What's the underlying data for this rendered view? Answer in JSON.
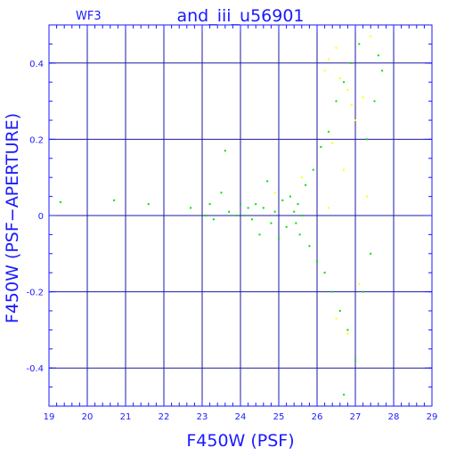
{
  "chart_data": {
    "type": "scatter",
    "corner_label": "WF3",
    "title": "and_iii_u56901",
    "xlabel": "F450W (PSF)",
    "ylabel": "F450W (PSF−APERTURE)",
    "xlim": [
      19,
      29
    ],
    "ylim": [
      -0.5,
      0.5
    ],
    "x_ticks": [
      "19",
      "20",
      "21",
      "22",
      "23",
      "24",
      "25",
      "26",
      "27",
      "28",
      "29"
    ],
    "y_ticks": [
      "-0.4",
      "-0.2",
      "0",
      "0.2",
      "0.4"
    ],
    "y_tick_values": [
      -0.4,
      -0.2,
      0,
      0.2,
      0.4
    ],
    "grid": true,
    "colors": {
      "axis": "#1a1aff",
      "grid": "#1a1aa0",
      "main_points": "#00e000",
      "secondary_points": "#ffff00"
    },
    "series": [
      {
        "color": "#00e000",
        "points": [
          [
            19.3,
            0.035
          ],
          [
            20.7,
            0.04
          ],
          [
            21.6,
            0.03
          ],
          [
            22.7,
            0.02
          ],
          [
            23.1,
            0.0
          ],
          [
            23.2,
            0.03
          ],
          [
            23.3,
            -0.01
          ],
          [
            23.5,
            0.06
          ],
          [
            23.6,
            0.17
          ],
          [
            23.7,
            0.01
          ],
          [
            23.9,
            0.0
          ],
          [
            24.0,
            0.03
          ],
          [
            24.1,
            0.0
          ],
          [
            24.2,
            0.02
          ],
          [
            24.3,
            -0.01
          ],
          [
            24.4,
            0.03
          ],
          [
            24.5,
            -0.05
          ],
          [
            24.6,
            0.02
          ],
          [
            24.7,
            0.09
          ],
          [
            24.8,
            -0.02
          ],
          [
            24.9,
            0.01
          ],
          [
            25.0,
            -0.06
          ],
          [
            25.1,
            0.04
          ],
          [
            25.2,
            -0.03
          ],
          [
            25.3,
            0.05
          ],
          [
            25.4,
            0.01
          ],
          [
            25.45,
            -0.02
          ],
          [
            25.5,
            0.03
          ],
          [
            25.55,
            -0.05
          ],
          [
            25.6,
            0.0
          ],
          [
            25.7,
            0.08
          ],
          [
            25.8,
            -0.08
          ],
          [
            25.9,
            0.12
          ],
          [
            26.0,
            -0.12
          ],
          [
            26.1,
            0.18
          ],
          [
            26.2,
            -0.15
          ],
          [
            26.3,
            0.22
          ],
          [
            26.4,
            -0.2
          ],
          [
            26.5,
            0.3
          ],
          [
            26.6,
            -0.25
          ],
          [
            26.7,
            0.35
          ],
          [
            26.8,
            -0.3
          ],
          [
            26.9,
            0.4
          ],
          [
            27.0,
            -0.38
          ],
          [
            27.1,
            0.45
          ],
          [
            27.2,
            -0.2
          ],
          [
            27.3,
            0.2
          ],
          [
            27.4,
            -0.1
          ],
          [
            27.5,
            0.3
          ],
          [
            27.6,
            0.42
          ],
          [
            27.7,
            0.38
          ],
          [
            26.7,
            -0.47
          ]
        ]
      },
      {
        "color": "#ffff00",
        "points": [
          [
            26.2,
            0.38
          ],
          [
            26.3,
            0.41
          ],
          [
            26.5,
            0.44
          ],
          [
            26.6,
            0.36
          ],
          [
            26.8,
            0.33
          ],
          [
            26.9,
            0.29
          ],
          [
            27.0,
            0.25
          ],
          [
            27.2,
            0.31
          ],
          [
            27.4,
            0.47
          ],
          [
            26.4,
            0.19
          ],
          [
            26.7,
            0.12
          ],
          [
            26.5,
            -0.27
          ],
          [
            26.8,
            -0.31
          ],
          [
            27.1,
            -0.18
          ],
          [
            26.3,
            0.02
          ],
          [
            27.3,
            0.05
          ],
          [
            24.9,
            0.06
          ],
          [
            25.6,
            0.1
          ]
        ]
      }
    ]
  }
}
